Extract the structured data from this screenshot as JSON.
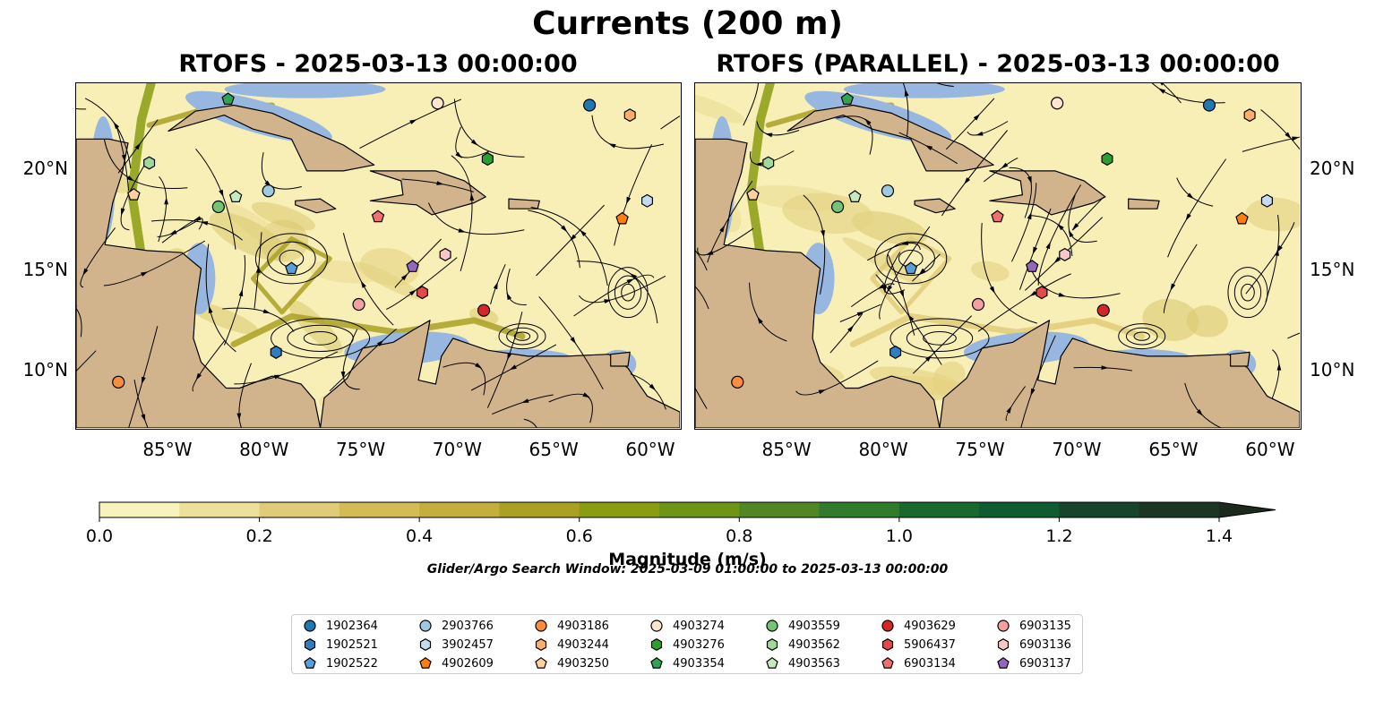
{
  "figure": {
    "title": "Currents (200 m)",
    "left_title": "RTOFS - 2025-03-13 00:00:00",
    "right_title": "RTOFS (PARALLEL) - 2025-03-13 00:00:00"
  },
  "axes": {
    "lon_ticks": [
      "85°W",
      "80°W",
      "75°W",
      "70°W",
      "65°W",
      "60°W"
    ],
    "lat_ticks": [
      "20°N",
      "15°N",
      "10°N"
    ]
  },
  "colorbar": {
    "label": "Magnitude (m/s)",
    "ticks": [
      "0.0",
      "0.2",
      "0.4",
      "0.6",
      "0.8",
      "1.0",
      "1.2",
      "1.4"
    ],
    "range": [
      0,
      1.5
    ],
    "colors": [
      "#f8f2bc",
      "#ede09a",
      "#e0cb78",
      "#d4bb56",
      "#c4ae3e",
      "#a9a024",
      "#8a9c12",
      "#6e9418",
      "#508626",
      "#327a2c",
      "#19692e",
      "#0e5c30",
      "#17452c",
      "#1c3624",
      "#1b2a1c"
    ]
  },
  "search_window": "Glider/Argo Search Window: 2025-03-09 01:00:00 to 2025-03-13 00:00:00",
  "map_colors": {
    "land": "#d2b48c",
    "shallow_water": "#97b6e0",
    "ocean_low": "#f8efb6"
  },
  "legend": {
    "items": [
      {
        "label": "1902364",
        "color": "#1f77b4",
        "marker": "circle"
      },
      {
        "label": "1902521",
        "color": "#2f7fc0",
        "marker": "hexagon"
      },
      {
        "label": "1902522",
        "color": "#5aa0d8",
        "marker": "pentagon"
      },
      {
        "label": "2903766",
        "color": "#9ecae1",
        "marker": "circle"
      },
      {
        "label": "3902457",
        "color": "#c6dbef",
        "marker": "hexagon"
      },
      {
        "label": "4902609",
        "color": "#ff7f0e",
        "marker": "pentagon"
      },
      {
        "label": "4903186",
        "color": "#fd8d3c",
        "marker": "circle"
      },
      {
        "label": "4903244",
        "color": "#fdae6b",
        "marker": "hexagon"
      },
      {
        "label": "4903250",
        "color": "#fdd0a2",
        "marker": "pentagon"
      },
      {
        "label": "4903274",
        "color": "#fee6ce",
        "marker": "circle"
      },
      {
        "label": "4903276",
        "color": "#2ca02c",
        "marker": "hexagon"
      },
      {
        "label": "4903354",
        "color": "#31a354",
        "marker": "pentagon"
      },
      {
        "label": "4903559",
        "color": "#74c476",
        "marker": "circle"
      },
      {
        "label": "4903562",
        "color": "#a1d99b",
        "marker": "hexagon"
      },
      {
        "label": "4903563",
        "color": "#c7e9c0",
        "marker": "pentagon"
      },
      {
        "label": "4903629",
        "color": "#d62728",
        "marker": "circle"
      },
      {
        "label": "5906437",
        "color": "#e34a4a",
        "marker": "hexagon"
      },
      {
        "label": "6903134",
        "color": "#f07070",
        "marker": "pentagon"
      },
      {
        "label": "6903135",
        "color": "#f4a0a0",
        "marker": "circle"
      },
      {
        "label": "6903136",
        "color": "#f7c6c6",
        "marker": "hexagon"
      },
      {
        "label": "6903137",
        "color": "#9467bd",
        "marker": "pentagon"
      }
    ]
  },
  "floats": [
    {
      "id": "1902364",
      "lon": -63.0,
      "lat": 23.2
    },
    {
      "id": "1902521",
      "lon": -79.3,
      "lat": 10.8
    },
    {
      "id": "1902522",
      "lon": -78.5,
      "lat": 15.0
    },
    {
      "id": "2903766",
      "lon": -79.7,
      "lat": 18.9
    },
    {
      "id": "3902457",
      "lon": -60.0,
      "lat": 18.4
    },
    {
      "id": "4902609",
      "lon": -61.3,
      "lat": 17.5
    },
    {
      "id": "4903186",
      "lon": -87.5,
      "lat": 9.3
    },
    {
      "id": "4903244",
      "lon": -60.9,
      "lat": 22.7
    },
    {
      "id": "4903250",
      "lon": -86.7,
      "lat": 18.7
    },
    {
      "id": "4903274",
      "lon": -70.9,
      "lat": 23.3
    },
    {
      "id": "4903276",
      "lon": -68.3,
      "lat": 20.5
    },
    {
      "id": "4903354",
      "lon": -81.8,
      "lat": 23.5
    },
    {
      "id": "4903559",
      "lon": -82.3,
      "lat": 18.1
    },
    {
      "id": "4903562",
      "lon": -85.9,
      "lat": 20.3
    },
    {
      "id": "4903563",
      "lon": -81.4,
      "lat": 18.6
    },
    {
      "id": "4903629",
      "lon": -68.5,
      "lat": 12.9
    },
    {
      "id": "5906437",
      "lon": -71.7,
      "lat": 13.8
    },
    {
      "id": "6903134",
      "lon": -74.0,
      "lat": 17.6
    },
    {
      "id": "6903135",
      "lon": -75.0,
      "lat": 13.2
    },
    {
      "id": "6903136",
      "lon": -70.5,
      "lat": 15.7
    },
    {
      "id": "6903137",
      "lon": -72.2,
      "lat": 15.1
    }
  ]
}
